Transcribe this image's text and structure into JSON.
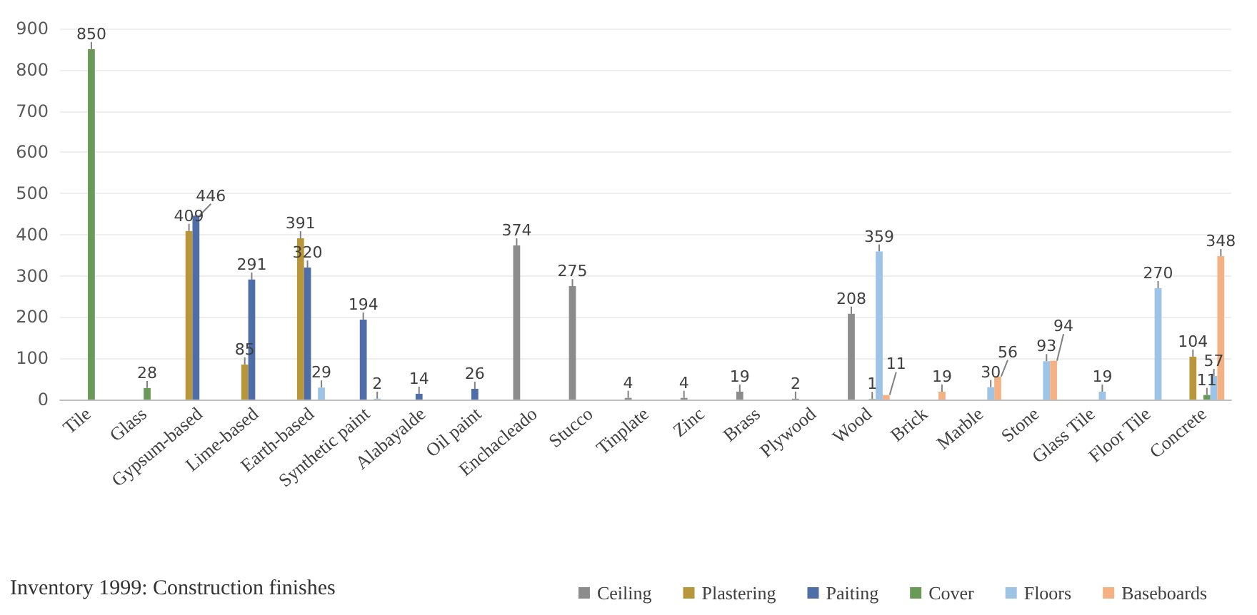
{
  "chart_data": {
    "type": "bar",
    "title": "Inventory 1999: Construction finishes",
    "categories": [
      "Tile",
      "Glass",
      "Gypsum-based",
      "Lime-based",
      "Earth-based",
      "Synthetic paint",
      "Alabayalde",
      "Oil paint",
      "Enchacleado",
      "Stucco",
      "Tinplate",
      "Zinc",
      "Brass",
      "Plywood",
      "Wood",
      "Brick",
      "Marble",
      "Stone",
      "Glass Tile",
      "Floor Tile",
      "Concrete"
    ],
    "series": [
      {
        "name": "Ceiling",
        "color": "#8c8c8c",
        "values": [
          null,
          null,
          null,
          null,
          null,
          null,
          null,
          null,
          374,
          275,
          4,
          4,
          19,
          2,
          208,
          null,
          null,
          null,
          null,
          null,
          null
        ]
      },
      {
        "name": "Plastering",
        "color": "#b8963a",
        "values": [
          null,
          null,
          409,
          85,
          391,
          null,
          null,
          null,
          null,
          null,
          null,
          null,
          null,
          null,
          null,
          null,
          null,
          null,
          null,
          null,
          104
        ]
      },
      {
        "name": "Paiting",
        "color": "#4f6ea8",
        "values": [
          null,
          null,
          446,
          291,
          320,
          194,
          14,
          26,
          null,
          null,
          null,
          null,
          null,
          null,
          null,
          null,
          null,
          null,
          null,
          null,
          null
        ]
      },
      {
        "name": "Cover",
        "color": "#6a9a58",
        "values": [
          850,
          28,
          null,
          null,
          null,
          null,
          null,
          null,
          null,
          null,
          null,
          null,
          null,
          null,
          1,
          null,
          null,
          null,
          null,
          null,
          11
        ]
      },
      {
        "name": "Floors",
        "color": "#9dc3e6",
        "values": [
          null,
          null,
          null,
          null,
          29,
          2,
          null,
          null,
          null,
          null,
          null,
          null,
          null,
          null,
          359,
          null,
          30,
          93,
          19,
          270,
          57
        ]
      },
      {
        "name": "Baseboards",
        "color": "#f4b183",
        "values": [
          null,
          null,
          null,
          null,
          null,
          null,
          null,
          null,
          null,
          null,
          null,
          null,
          null,
          null,
          11,
          19,
          56,
          94,
          null,
          null,
          348
        ]
      }
    ],
    "ylim": [
      0,
      900
    ],
    "yticks": [
      0,
      100,
      200,
      300,
      400,
      500,
      600,
      700,
      800,
      900
    ],
    "grid": "y",
    "legend": "bottom",
    "data_labels": true
  }
}
